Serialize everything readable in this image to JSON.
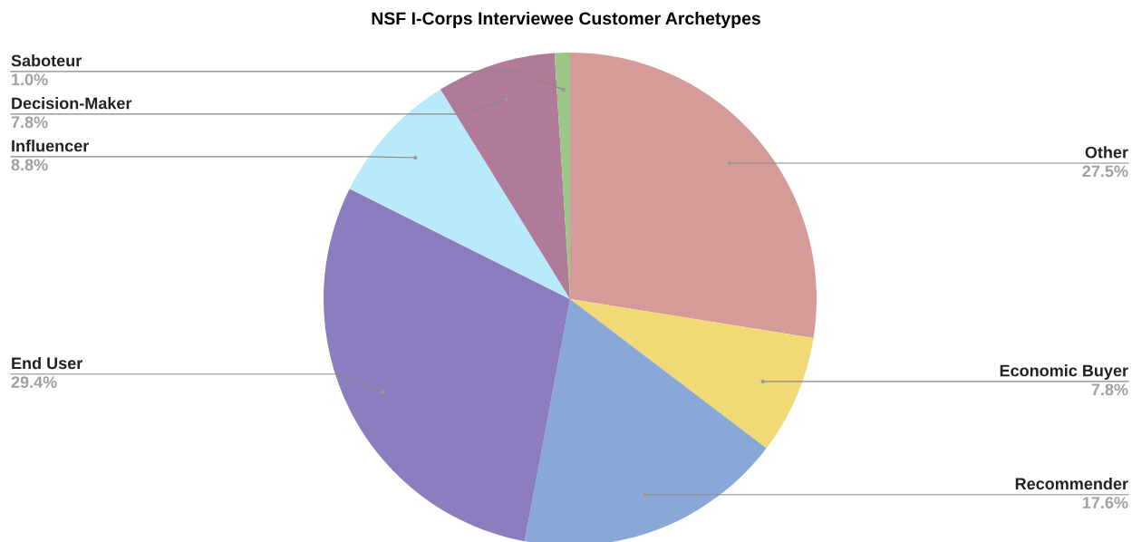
{
  "chart_data": {
    "type": "pie",
    "title": "NSF I-Corps Interviewee Customer Archetypes",
    "categories": [
      "Other",
      "Economic Buyer",
      "Recommender",
      "End User",
      "Influencer",
      "Decision-Maker",
      "Saboteur"
    ],
    "values": [
      27.5,
      7.8,
      17.6,
      29.4,
      8.8,
      7.8,
      1.0
    ],
    "value_labels": [
      "27.5%",
      "7.8%",
      "17.6%",
      "29.4%",
      "8.8%",
      "7.8%",
      "1.0%"
    ],
    "colors": [
      "#d59b99",
      "#f1d975",
      "#89a8d8",
      "#8b7dbe",
      "#b8eafc",
      "#b07b99",
      "#9dc587"
    ],
    "legend": false
  }
}
